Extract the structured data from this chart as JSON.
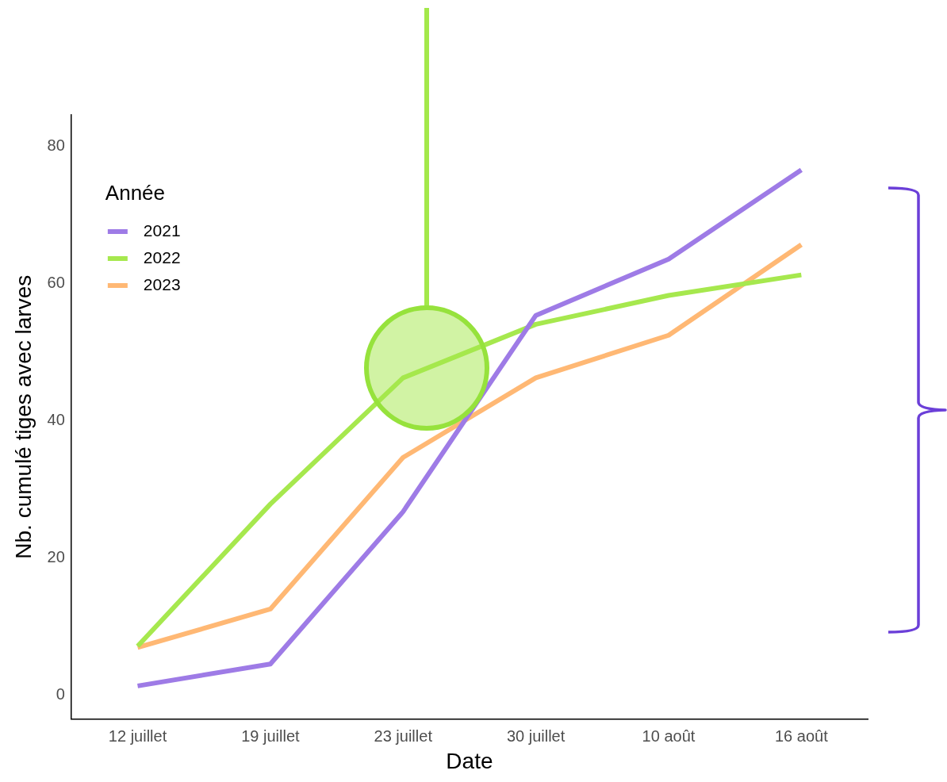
{
  "chart_data": {
    "type": "line",
    "xlabel": "Date",
    "ylabel": "Nb. cumulé tiges avec larves",
    "legend_title": "Année",
    "legend": "top left",
    "grid": false,
    "marker": "none",
    "line_style": "solid",
    "categories": [
      "12 juillet",
      "19 juillet",
      "23 juillet",
      "30 juillet",
      "10 août",
      "16 août"
    ],
    "ylim": [
      -3.4,
      84.6
    ],
    "yticks": [
      0,
      20,
      40,
      60,
      80
    ],
    "series": [
      {
        "name": "2021",
        "color": "#9e7be6",
        "values": [
          1.4,
          4.6,
          26.8,
          55.4,
          63.6,
          76.6
        ]
      },
      {
        "name": "2022",
        "color": "#a6e84e",
        "values": [
          7.2,
          27.9,
          46.3,
          54.1,
          58.3,
          61.3
        ]
      },
      {
        "name": "2023",
        "color": "#ffb874",
        "values": [
          7.0,
          12.6,
          34.7,
          46.3,
          52.5,
          65.7
        ]
      }
    ]
  }
}
